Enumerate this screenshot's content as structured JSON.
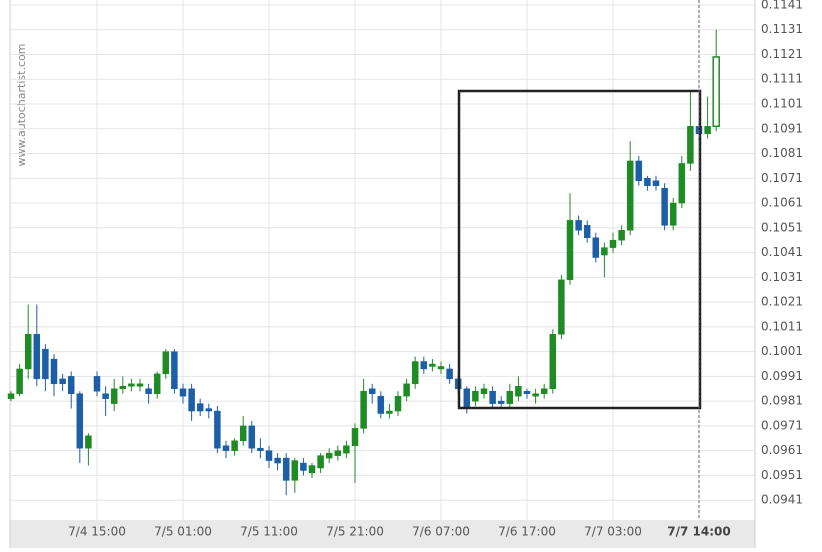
{
  "chart_data": {
    "type": "candlestick",
    "watermark": "www.autochartist.com",
    "up_color": "#1f8b24",
    "down_color": "#1d5fa6",
    "grid": true,
    "ylim": [
      0.0933,
      0.1143
    ],
    "yticks": [
      0.0941,
      0.0951,
      0.0961,
      0.0971,
      0.0981,
      0.0991,
      0.1001,
      0.1011,
      0.1021,
      0.1031,
      0.1041,
      0.1051,
      0.1061,
      0.1071,
      0.1081,
      0.1091,
      0.1101,
      0.1111,
      0.1121,
      0.1131,
      0.1141
    ],
    "categories": [
      null,
      null,
      null,
      null,
      null,
      null,
      null,
      null,
      null,
      null,
      "7/4 15:00",
      null,
      null,
      null,
      null,
      null,
      null,
      null,
      null,
      null,
      "7/5 01:00",
      null,
      null,
      null,
      null,
      null,
      null,
      null,
      null,
      null,
      "7/5 11:00",
      null,
      null,
      null,
      null,
      null,
      null,
      null,
      null,
      null,
      "7/5 21:00",
      null,
      null,
      null,
      null,
      null,
      null,
      null,
      null,
      null,
      "7/6 07:00",
      null,
      null,
      null,
      null,
      null,
      null,
      null,
      null,
      null,
      "7/6 17:00",
      null,
      null,
      null,
      null,
      null,
      null,
      null,
      null,
      null,
      "7/7 03:00",
      null,
      null,
      null,
      null,
      null,
      null,
      null,
      null,
      null,
      "7/7 14:00",
      null,
      null
    ],
    "open": [
      0.0982,
      0.0984,
      0.0994,
      0.1008,
      0.1002,
      0.0998,
      0.099,
      0.0991,
      0.0984,
      0.0962,
      0.0991,
      0.0984,
      0.098,
      0.0986,
      0.0987,
      0.0987,
      0.0986,
      0.0984,
      0.0992,
      0.1001,
      0.0986,
      0.0986,
      0.098,
      0.0978,
      0.0977,
      0.0963,
      0.0961,
      0.0965,
      0.0971,
      0.0962,
      0.0961,
      0.0958,
      0.0958,
      0.0949,
      0.0956,
      0.0952,
      0.0954,
      0.0958,
      0.0959,
      0.096,
      0.0963,
      0.097,
      0.0986,
      0.0983,
      0.0976,
      0.0977,
      0.0983,
      0.0988,
      0.0997,
      0.0995,
      0.0994,
      0.0994,
      0.099,
      0.0986,
      0.0981,
      0.0984,
      0.0985,
      0.0981,
      0.098,
      0.0983,
      0.0985,
      0.0983,
      0.0984,
      0.0986,
      0.1008,
      0.103,
      0.1054,
      0.1052,
      0.1047,
      0.104,
      0.1043,
      0.1046,
      0.105,
      0.1078,
      0.1071,
      0.107,
      0.1067,
      0.1052,
      0.1061,
      0.1077,
      0.1092,
      0.1089,
      0.1092
    ],
    "close": [
      0.0984,
      0.0994,
      0.1008,
      0.099,
      0.099,
      0.0988,
      0.0988,
      0.0984,
      0.0962,
      0.0967,
      0.0985,
      0.0982,
      0.0986,
      0.0987,
      0.0988,
      0.0988,
      0.0984,
      0.0992,
      0.1001,
      0.0986,
      0.0983,
      0.0977,
      0.0977,
      0.0977,
      0.0962,
      0.0961,
      0.0965,
      0.0971,
      0.0962,
      0.0961,
      0.0957,
      0.0956,
      0.0949,
      0.0957,
      0.0953,
      0.0955,
      0.0959,
      0.096,
      0.0961,
      0.0963,
      0.097,
      0.0985,
      0.0984,
      0.0976,
      0.0977,
      0.0983,
      0.0988,
      0.0997,
      0.0994,
      0.0996,
      0.0995,
      0.099,
      0.0986,
      0.0978,
      0.0985,
      0.0986,
      0.098,
      0.098,
      0.0985,
      0.0987,
      0.0984,
      0.0984,
      0.0986,
      0.1008,
      0.103,
      0.1054,
      0.105,
      0.1047,
      0.1039,
      0.1043,
      0.1046,
      0.105,
      0.1078,
      0.107,
      0.1068,
      0.1068,
      0.1052,
      0.1061,
      0.1077,
      0.1092,
      0.1089,
      0.1092,
      0.112
    ],
    "high": [
      0.0985,
      0.0996,
      0.102,
      0.102,
      0.1004,
      0.1,
      0.0992,
      0.0993,
      0.0985,
      0.0968,
      0.0993,
      0.0987,
      0.099,
      0.0991,
      0.099,
      0.099,
      0.0988,
      0.0993,
      0.1002,
      0.1002,
      0.0988,
      0.0988,
      0.0982,
      0.098,
      0.0979,
      0.0965,
      0.0966,
      0.0975,
      0.0973,
      0.0966,
      0.0963,
      0.096,
      0.096,
      0.0958,
      0.0958,
      0.0956,
      0.096,
      0.0962,
      0.0963,
      0.0965,
      0.0972,
      0.099,
      0.0988,
      0.0985,
      0.098,
      0.0985,
      0.099,
      0.0999,
      0.0999,
      0.0998,
      0.0997,
      0.0996,
      0.0992,
      0.0987,
      0.0987,
      0.0988,
      0.0987,
      0.0983,
      0.0988,
      0.0991,
      0.0986,
      0.0986,
      0.0988,
      0.101,
      0.1032,
      0.1065,
      0.1056,
      0.1054,
      0.1049,
      0.1045,
      0.1049,
      0.1052,
      0.1086,
      0.108,
      0.1072,
      0.1072,
      0.1069,
      0.1063,
      0.108,
      0.1106,
      0.1094,
      0.1104,
      0.1131
    ],
    "low": [
      0.0981,
      0.0983,
      0.099,
      0.0987,
      0.0985,
      0.0983,
      0.0985,
      0.0978,
      0.0956,
      0.0955,
      0.0983,
      0.0975,
      0.0977,
      0.0984,
      0.0985,
      0.0985,
      0.098,
      0.0982,
      0.099,
      0.0984,
      0.098,
      0.0973,
      0.0975,
      0.0974,
      0.096,
      0.0958,
      0.0959,
      0.0963,
      0.096,
      0.0958,
      0.0954,
      0.0953,
      0.0943,
      0.0944,
      0.0951,
      0.095,
      0.0952,
      0.0956,
      0.0957,
      0.0958,
      0.0948,
      0.0968,
      0.098,
      0.0974,
      0.0974,
      0.0975,
      0.0981,
      0.0986,
      0.0992,
      0.0993,
      0.0992,
      0.0988,
      0.0984,
      0.0976,
      0.0979,
      0.0982,
      0.0978,
      0.0978,
      0.0978,
      0.0981,
      0.0982,
      0.098,
      0.0982,
      0.0984,
      0.1006,
      0.1028,
      0.1048,
      0.1045,
      0.1037,
      0.1031,
      0.1041,
      0.1044,
      0.1048,
      0.1068,
      0.1066,
      0.1066,
      0.105,
      0.105,
      0.1059,
      0.1074,
      0.1086,
      0.1087,
      0.109
    ]
  }
}
